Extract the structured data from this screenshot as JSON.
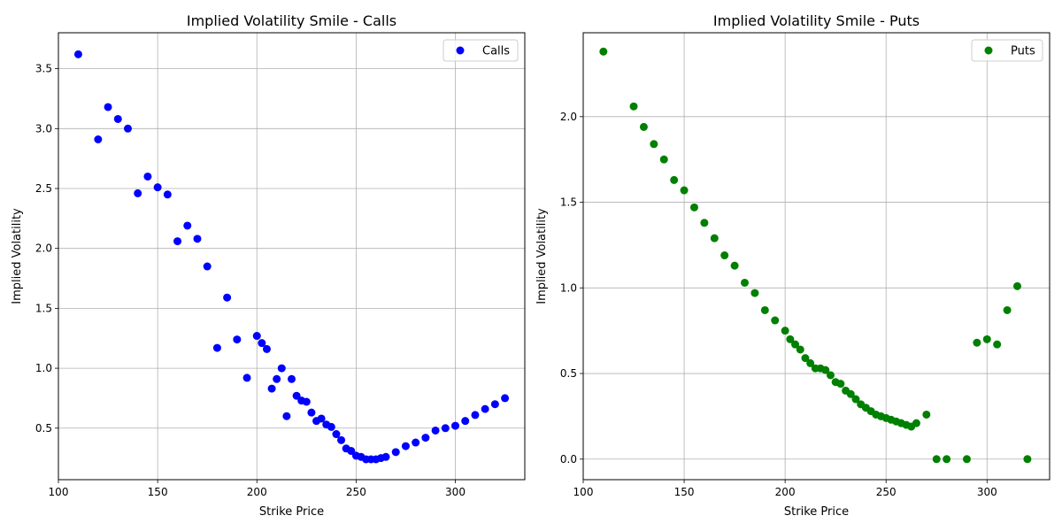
{
  "chart_data": [
    {
      "type": "scatter",
      "title": "Implied Volatility Smile - Calls",
      "xlabel": "Strike Price",
      "ylabel": "Implied Volatility",
      "xlim": [
        100,
        335
      ],
      "ylim": [
        0.07,
        3.8
      ],
      "xticks": [
        100,
        150,
        200,
        250,
        300
      ],
      "xtick_labels": [
        "100",
        "150",
        "200",
        "250",
        "300"
      ],
      "yticks": [
        0.5,
        1.0,
        1.5,
        2.0,
        2.5,
        3.0,
        3.5
      ],
      "ytick_labels": [
        "0.5",
        "1.0",
        "1.5",
        "2.0",
        "2.5",
        "3.0",
        "3.5"
      ],
      "grid": true,
      "legend": "top-right",
      "series": [
        {
          "name": "Calls",
          "color": "#0000ff",
          "x": [
            110,
            120,
            125,
            130,
            135,
            140,
            145,
            150,
            155,
            160,
            165,
            170,
            175,
            180,
            185,
            190,
            195,
            200,
            202.5,
            205,
            207.5,
            210,
            212.5,
            215,
            217.5,
            220,
            222.5,
            225,
            227.5,
            230,
            232.5,
            235,
            237.5,
            240,
            242.5,
            245,
            247.5,
            250,
            252.5,
            255,
            257.5,
            260,
            262.5,
            265,
            270,
            275,
            280,
            285,
            290,
            295,
            300,
            305,
            310,
            315,
            320,
            325
          ],
          "y": [
            3.62,
            2.91,
            3.18,
            3.08,
            3.0,
            2.46,
            2.6,
            2.51,
            2.45,
            2.06,
            2.19,
            2.08,
            1.85,
            1.17,
            1.59,
            1.24,
            0.92,
            1.27,
            1.21,
            1.16,
            0.83,
            0.91,
            1.0,
            0.6,
            0.91,
            0.77,
            0.73,
            0.72,
            0.63,
            0.56,
            0.58,
            0.53,
            0.51,
            0.45,
            0.4,
            0.33,
            0.31,
            0.27,
            0.26,
            0.24,
            0.24,
            0.24,
            0.25,
            0.26,
            0.3,
            0.35,
            0.38,
            0.42,
            0.48,
            0.5,
            0.52,
            0.56,
            0.61,
            0.66,
            0.7,
            0.75
          ]
        }
      ]
    },
    {
      "type": "scatter",
      "title": "Implied Volatility Smile - Puts",
      "xlabel": "Strike Price",
      "ylabel": "Implied Volatility",
      "xlim": [
        100,
        331
      ],
      "ylim": [
        -0.12,
        2.49
      ],
      "xticks": [
        100,
        150,
        200,
        250,
        300
      ],
      "xtick_labels": [
        "100",
        "150",
        "200",
        "250",
        "300"
      ],
      "yticks": [
        0.0,
        0.5,
        1.0,
        1.5,
        2.0
      ],
      "ytick_labels": [
        "0.0",
        "0.5",
        "1.0",
        "1.5",
        "2.0"
      ],
      "grid": true,
      "legend": "top-right",
      "series": [
        {
          "name": "Puts",
          "color": "#008000",
          "x": [
            110,
            125,
            130,
            135,
            140,
            145,
            150,
            155,
            160,
            165,
            170,
            175,
            180,
            185,
            190,
            195,
            200,
            202.5,
            205,
            207.5,
            210,
            212.5,
            215,
            217.5,
            220,
            222.5,
            225,
            227.5,
            230,
            232.5,
            235,
            237.5,
            240,
            242.5,
            245,
            247.5,
            250,
            252.5,
            255,
            257.5,
            260,
            262.5,
            265,
            270,
            275,
            280,
            290,
            295,
            300,
            305,
            310,
            315,
            320
          ],
          "y": [
            2.38,
            2.06,
            1.94,
            1.84,
            1.75,
            1.63,
            1.57,
            1.47,
            1.38,
            1.29,
            1.19,
            1.13,
            1.03,
            0.97,
            0.87,
            0.81,
            0.75,
            0.7,
            0.67,
            0.64,
            0.59,
            0.56,
            0.53,
            0.53,
            0.52,
            0.49,
            0.45,
            0.44,
            0.4,
            0.38,
            0.35,
            0.32,
            0.3,
            0.28,
            0.26,
            0.25,
            0.24,
            0.23,
            0.22,
            0.21,
            0.2,
            0.19,
            0.21,
            0.26,
            0.0,
            0.0,
            0.0,
            0.68,
            0.7,
            0.67,
            0.87,
            1.01,
            0.0
          ]
        }
      ]
    }
  ]
}
